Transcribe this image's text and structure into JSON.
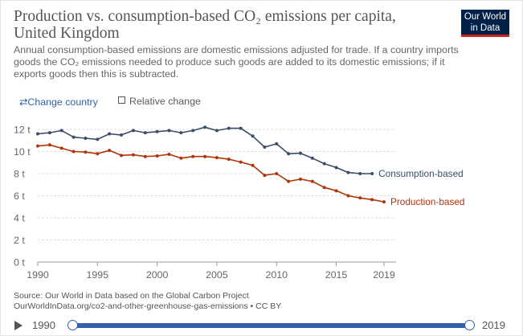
{
  "header": {
    "title": "Production vs. consumption-based CO₂ emissions per capita, United Kingdom",
    "subtitle": "Annual consumption-based emissions are domestic emissions adjusted for trade. If a country imports goods the CO₂ emissions needed to produce such goods are added to its domestic emissions; if it exports goods then this is subtracted.",
    "logo_line1": "Our World",
    "logo_line2": "in Data"
  },
  "controls": {
    "change_country_icon": "swap-arrows-icon",
    "change_country_glyph": "⇄",
    "change_country": "Change country",
    "relative_change": "Relative change"
  },
  "chart_data": {
    "type": "line",
    "title": "",
    "xlabel": "",
    "ylabel": "",
    "xlim": [
      1990,
      2019
    ],
    "ylim": [
      0,
      12
    ],
    "x_ticks": [
      1990,
      1995,
      2000,
      2005,
      2010,
      2015,
      2019
    ],
    "y_ticks": [
      0,
      2,
      4,
      6,
      8,
      10,
      12
    ],
    "y_tick_labels": [
      "0 t",
      "2 t",
      "4 t",
      "6 t",
      "8 t",
      "10 t",
      "12 t"
    ],
    "grid": "horizontal dotted",
    "legend": "inline labels at line ends (right)",
    "series": [
      {
        "name": "Consumption-based",
        "color": "#3d4d67",
        "x": [
          1990,
          1991,
          1992,
          1993,
          1994,
          1995,
          1996,
          1997,
          1998,
          1999,
          2000,
          2001,
          2002,
          2003,
          2004,
          2005,
          2006,
          2007,
          2008,
          2009,
          2010,
          2011,
          2012,
          2013,
          2014,
          2015,
          2016,
          2017,
          2018
        ],
        "values": [
          11.6,
          11.7,
          11.9,
          11.3,
          11.2,
          11.1,
          11.6,
          11.5,
          11.9,
          11.7,
          11.8,
          11.9,
          11.7,
          11.9,
          12.2,
          11.9,
          12.1,
          12.1,
          11.4,
          10.4,
          10.7,
          9.8,
          9.85,
          9.4,
          8.9,
          8.55,
          8.1,
          8.0,
          8.0
        ]
      },
      {
        "name": "Production-based",
        "color": "#b13507",
        "x": [
          1990,
          1991,
          1992,
          1993,
          1994,
          1995,
          1996,
          1997,
          1998,
          1999,
          2000,
          2001,
          2002,
          2003,
          2004,
          2005,
          2006,
          2007,
          2008,
          2009,
          2010,
          2011,
          2012,
          2013,
          2014,
          2015,
          2016,
          2017,
          2018,
          2019
        ],
        "values": [
          10.5,
          10.6,
          10.3,
          10.0,
          9.95,
          9.8,
          10.1,
          9.65,
          9.7,
          9.55,
          9.6,
          9.75,
          9.4,
          9.55,
          9.55,
          9.45,
          9.3,
          9.05,
          8.75,
          7.85,
          8.0,
          7.3,
          7.5,
          7.3,
          6.75,
          6.45,
          6.0,
          5.8,
          5.65,
          5.45
        ]
      }
    ]
  },
  "footer": {
    "source_line1": "Source: Our World in Data based on the Global Carbon Project",
    "source_line2": "OurWorldInData.org/co2-and-other-greenhouse-gas-emissions • CC BY"
  },
  "timeline": {
    "start": "1990",
    "end": "2019",
    "play_icon": "play-icon"
  }
}
